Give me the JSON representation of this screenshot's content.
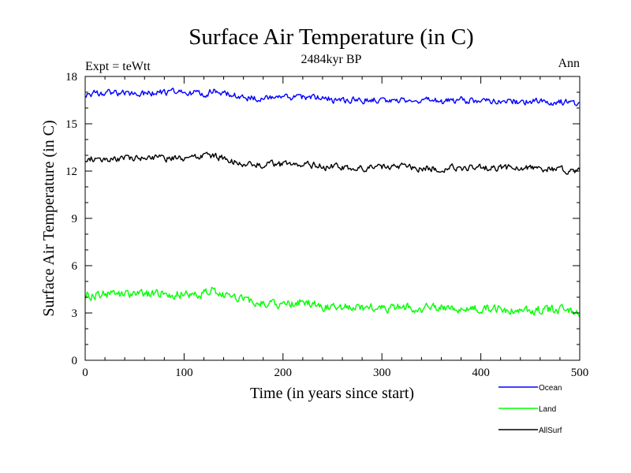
{
  "chart_data": {
    "type": "line",
    "title": "Surface Air Temperature (in C)",
    "subtitle": "2484kyr BP",
    "left_label": "Expt = teWtt",
    "right_label": "Ann",
    "xlabel": "Time (in years since start)",
    "ylabel": "Surface Air Temperature (in C)",
    "xlim": [
      0,
      500
    ],
    "ylim": [
      0,
      18
    ],
    "xticks": [
      0,
      100,
      200,
      300,
      400,
      500
    ],
    "yticks": [
      0,
      3,
      6,
      9,
      12,
      15,
      18
    ],
    "legend_position": "bottom-right",
    "grid": false,
    "series": [
      {
        "name": "Ocean",
        "color": "#0000ff",
        "x": [
          0,
          20,
          40,
          60,
          80,
          100,
          120,
          130,
          140,
          150,
          160,
          180,
          200,
          220,
          240,
          260,
          280,
          300,
          320,
          340,
          360,
          380,
          400,
          420,
          440,
          460,
          480,
          500
        ],
        "values": [
          16.9,
          17.0,
          16.9,
          16.9,
          17.0,
          17.0,
          16.9,
          17.1,
          16.9,
          16.8,
          16.7,
          16.6,
          16.6,
          16.7,
          16.6,
          16.5,
          16.5,
          16.5,
          16.5,
          16.5,
          16.4,
          16.5,
          16.5,
          16.5,
          16.4,
          16.4,
          16.4,
          16.3
        ]
      },
      {
        "name": "Land",
        "color": "#00ff00",
        "x": [
          0,
          20,
          40,
          60,
          80,
          100,
          120,
          130,
          140,
          150,
          160,
          180,
          200,
          220,
          240,
          260,
          280,
          300,
          320,
          340,
          360,
          380,
          400,
          420,
          440,
          460,
          480,
          500
        ],
        "values": [
          4.1,
          4.2,
          4.2,
          4.2,
          4.2,
          4.2,
          4.2,
          4.5,
          4.1,
          3.9,
          3.8,
          3.6,
          3.5,
          3.7,
          3.4,
          3.4,
          3.3,
          3.3,
          3.4,
          3.3,
          3.3,
          3.3,
          3.3,
          3.3,
          3.1,
          3.2,
          3.2,
          3.0
        ]
      },
      {
        "name": "AllSurf",
        "color": "#000000",
        "x": [
          0,
          20,
          40,
          60,
          80,
          100,
          120,
          130,
          140,
          150,
          160,
          180,
          200,
          220,
          240,
          260,
          280,
          300,
          320,
          340,
          360,
          380,
          400,
          420,
          440,
          460,
          480,
          500
        ],
        "values": [
          12.8,
          12.8,
          12.8,
          12.8,
          12.8,
          12.8,
          12.9,
          13.0,
          12.8,
          12.6,
          12.5,
          12.4,
          12.4,
          12.5,
          12.3,
          12.2,
          12.2,
          12.2,
          12.3,
          12.2,
          12.2,
          12.2,
          12.2,
          12.2,
          12.2,
          12.2,
          12.1,
          12.0
        ]
      }
    ]
  }
}
